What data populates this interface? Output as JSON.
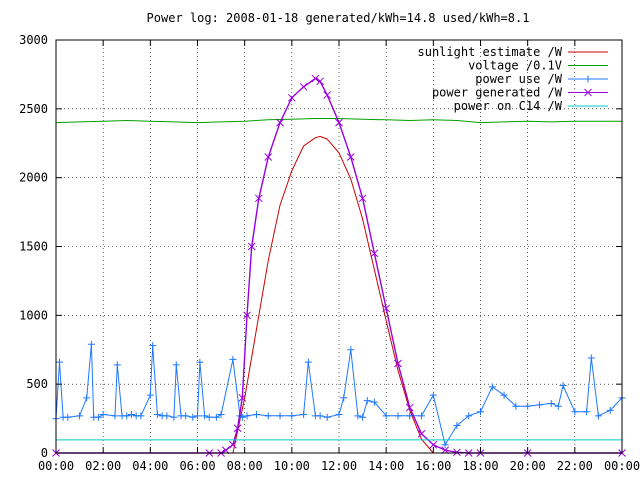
{
  "chart_data": {
    "type": "line",
    "title": "Power log: 2008-01-18 generated/kWh=14.8 used/kWh=8.1",
    "xlabel": "",
    "ylabel": "",
    "xlim": [
      0,
      24
    ],
    "ylim": [
      0,
      3000
    ],
    "grid": true,
    "legend_position": "top-right",
    "x_ticks": [
      "00:00",
      "02:00",
      "04:00",
      "06:00",
      "08:00",
      "10:00",
      "12:00",
      "14:00",
      "16:00",
      "18:00",
      "20:00",
      "22:00",
      "00:00"
    ],
    "y_ticks": [
      "0",
      "500",
      "1000",
      "1500",
      "2000",
      "2500",
      "3000"
    ],
    "series": [
      {
        "name": "sunlight estimate /W",
        "color": "#cc0000",
        "marker": "none",
        "x": [
          7.5,
          8.0,
          8.5,
          9.0,
          9.5,
          10.0,
          10.5,
          11.0,
          11.2,
          11.5,
          12.0,
          12.5,
          13.0,
          13.5,
          14.0,
          14.5,
          15.0,
          15.5,
          16.0
        ],
        "y": [
          0,
          400,
          900,
          1400,
          1800,
          2050,
          2230,
          2290,
          2300,
          2280,
          2180,
          1990,
          1700,
          1330,
          960,
          600,
          310,
          100,
          0
        ]
      },
      {
        "name": "voltage /0.1V",
        "color": "#00a000",
        "marker": "none",
        "x": [
          0,
          1,
          2,
          3,
          4,
          5,
          6,
          7,
          8,
          9,
          10,
          11,
          12,
          13,
          14,
          15,
          16,
          17,
          18,
          19,
          20,
          21,
          22,
          23,
          24
        ],
        "y": [
          2400,
          2405,
          2410,
          2415,
          2410,
          2405,
          2400,
          2405,
          2410,
          2420,
          2425,
          2430,
          2430,
          2425,
          2420,
          2415,
          2420,
          2415,
          2400,
          2405,
          2410,
          2405,
          2410,
          2410,
          2410
        ]
      },
      {
        "name": "power use /W",
        "color": "#1e78ff",
        "marker": "plus",
        "x": [
          0,
          0.15,
          0.3,
          0.5,
          1.0,
          1.3,
          1.5,
          1.6,
          1.8,
          2.0,
          2.5,
          2.6,
          2.8,
          3.0,
          3.2,
          3.4,
          3.6,
          4.0,
          4.1,
          4.3,
          4.5,
          4.7,
          5.0,
          5.1,
          5.3,
          5.5,
          5.8,
          6.0,
          6.1,
          6.3,
          6.5,
          6.8,
          7.0,
          7.5,
          7.8,
          7.9,
          8.1,
          8.5,
          9.0,
          9.5,
          10.0,
          10.5,
          10.7,
          11.0,
          11.2,
          11.5,
          12.0,
          12.2,
          12.5,
          12.8,
          13.0,
          13.2,
          13.5,
          14.0,
          14.5,
          15.0,
          15.5,
          16.0,
          16.5,
          17.0,
          17.5,
          18.0,
          18.5,
          19.0,
          19.5,
          20.0,
          20.5,
          21.0,
          21.3,
          21.5,
          22.0,
          22.5,
          22.7,
          23.0,
          23.5,
          24.0
        ],
        "y": [
          250,
          660,
          260,
          260,
          270,
          400,
          790,
          260,
          260,
          280,
          270,
          640,
          270,
          270,
          280,
          270,
          270,
          420,
          780,
          280,
          270,
          270,
          260,
          640,
          270,
          270,
          260,
          270,
          660,
          270,
          260,
          260,
          280,
          680,
          270,
          260,
          270,
          280,
          270,
          270,
          270,
          280,
          660,
          270,
          270,
          260,
          280,
          400,
          750,
          270,
          260,
          380,
          370,
          270,
          270,
          270,
          270,
          420,
          60,
          200,
          270,
          300,
          480,
          420,
          340,
          340,
          350,
          360,
          340,
          490,
          300,
          300,
          690,
          270,
          310,
          400
        ]
      },
      {
        "name": "power generated /W",
        "color": "#9900dd",
        "marker": "x",
        "x": [
          0,
          6.5,
          7.0,
          7.2,
          7.5,
          7.7,
          7.9,
          8.1,
          8.3,
          8.6,
          9.0,
          9.5,
          10.0,
          10.5,
          11.0,
          11.2,
          11.5,
          12.0,
          12.5,
          13.0,
          13.5,
          14.0,
          14.5,
          15.0,
          15.5,
          16.0,
          16.5,
          17.0,
          17.5,
          18.0,
          20.0,
          24.0
        ],
        "y": [
          0,
          0,
          0,
          20,
          60,
          180,
          400,
          1000,
          1500,
          1850,
          2150,
          2400,
          2580,
          2660,
          2720,
          2700,
          2600,
          2400,
          2150,
          1850,
          1450,
          1050,
          650,
          330,
          140,
          60,
          20,
          5,
          0,
          0,
          0,
          0
        ]
      },
      {
        "name": "power on C14 /W",
        "color": "#00cccc",
        "marker": "none",
        "x": [
          0,
          4,
          8,
          12,
          16,
          20,
          24
        ],
        "y": [
          95,
          95,
          95,
          95,
          95,
          95,
          95
        ]
      }
    ]
  }
}
